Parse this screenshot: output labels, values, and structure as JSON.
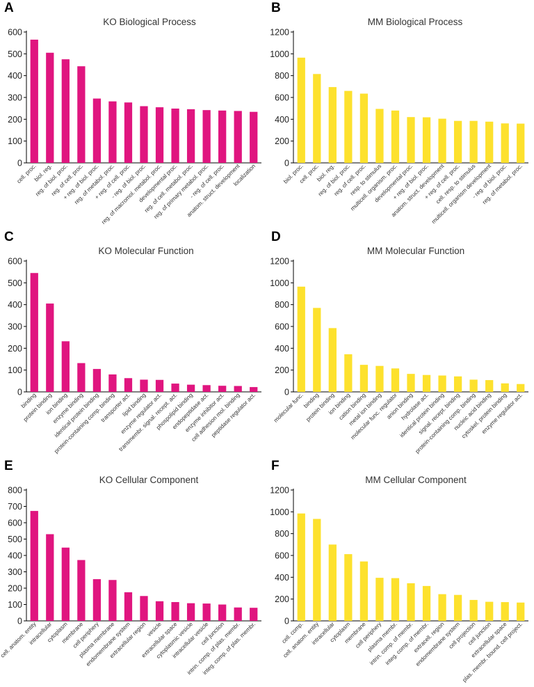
{
  "chart_data": [
    {
      "id": "A",
      "type": "bar",
      "title": "KO Biological Process",
      "color": "#e0157f",
      "ylim": [
        0,
        600
      ],
      "yticks": [
        0,
        100,
        200,
        300,
        400,
        500,
        600
      ],
      "categories": [
        "cell. proc.",
        "biol. reg.",
        "reg. of biol. proc.",
        "reg. of cell. proc.",
        "+ reg. of biol. proc.",
        "reg. of metabol. proc.",
        "+ reg. of cell. proc.",
        "- reg. of biol. proc.",
        "reg. of macromol. metabol. proc.",
        "developmental proc.",
        "reg. of cell. metabol. proc.",
        "reg. of primary metabol. proc.",
        "- reg. of cell. proc.",
        "anatom. struct. development",
        "localization"
      ],
      "values": [
        565,
        505,
        475,
        443,
        295,
        282,
        277,
        260,
        255,
        249,
        246,
        242,
        240,
        238,
        234
      ]
    },
    {
      "id": "B",
      "type": "bar",
      "title": "MM Biological Process",
      "color": "#fde12d",
      "ylim": [
        0,
        1200
      ],
      "yticks": [
        0,
        200,
        400,
        600,
        800,
        1000,
        1200
      ],
      "categories": [
        "biol. proc.",
        "cell. proc.",
        "biol. reg.",
        "reg. of biol. proc.",
        "reg. of cell. proc.",
        "resp. to stimulus",
        "multicell. organism. proc.",
        "developmental proc.",
        "+ reg. of biol. proc.",
        "anatom. struct. development",
        "+ reg. of cell. proc.",
        "cell. resp. to stimulus",
        "multicell. organism development",
        "- reg. of biol. proc.",
        "reg. of metabol. proc."
      ],
      "values": [
        965,
        815,
        695,
        660,
        635,
        495,
        480,
        420,
        418,
        405,
        385,
        385,
        378,
        362,
        360
      ]
    },
    {
      "id": "C",
      "type": "bar",
      "title": "KO Molecular Function",
      "color": "#e0157f",
      "ylim": [
        0,
        600
      ],
      "yticks": [
        0,
        100,
        200,
        300,
        400,
        500,
        600
      ],
      "categories": [
        "binding",
        "protein binding",
        "ion binding",
        "enzyme binding",
        "identical protein binding",
        "protein-containing comp. binding",
        "transporter act.",
        "lipid binding",
        "enzyme regulator act.",
        "transmembr. signal. recept. act.",
        "phospolipid binding",
        "endopeptidase act.",
        "enzyme inhibitor act.",
        "cell adhesion mol. binding",
        "peptidase regulator act."
      ],
      "values": [
        545,
        405,
        232,
        132,
        105,
        80,
        63,
        56,
        55,
        38,
        33,
        31,
        28,
        27,
        22
      ]
    },
    {
      "id": "D",
      "type": "bar",
      "title": "MM Molecular Function",
      "color": "#fde12d",
      "ylim": [
        0,
        1200
      ],
      "yticks": [
        0,
        200,
        400,
        600,
        800,
        1000,
        1200
      ],
      "categories": [
        "molecular func.",
        "binding",
        "protein binding",
        "ion binding",
        "cation binding",
        "metal ion binding",
        "molecular func. regulator",
        "anion binding",
        "hydrolase act.",
        "identical protein binding",
        "signal. recept. binding",
        "protein-containing comp. binding",
        "nucleic acid binding",
        "cytoskel. protein binding",
        "enzyme regulator act."
      ],
      "values": [
        965,
        770,
        585,
        345,
        248,
        238,
        215,
        165,
        155,
        150,
        142,
        112,
        108,
        78,
        72
      ]
    },
    {
      "id": "E",
      "type": "bar",
      "title": "KO Cellular Component",
      "color": "#e0157f",
      "ylim": [
        0,
        800
      ],
      "yticks": [
        0,
        100,
        200,
        300,
        400,
        500,
        600,
        700,
        800
      ],
      "categories": [
        "cell. anatom. entity",
        "intracellular",
        "cytoplasm",
        "membrane",
        "cell periphery",
        "plasma membrane",
        "endomembrane system",
        "extracellular region",
        "vesicle",
        "extracellular space",
        "cytoplasmic vesicle",
        "intracellular vesicle",
        "cell junction",
        "intrin. comp. of plas. membr.",
        "integ. comp. of plas. membr."
      ],
      "values": [
        672,
        530,
        448,
        372,
        255,
        250,
        175,
        152,
        120,
        115,
        108,
        106,
        100,
        82,
        80
      ]
    },
    {
      "id": "F",
      "type": "bar",
      "title": "MM Cellular Component",
      "color": "#fde12d",
      "ylim": [
        0,
        1200
      ],
      "yticks": [
        0,
        200,
        400,
        600,
        800,
        1000,
        1200
      ],
      "categories": [
        "cell. comp.",
        "cell. anatom. entity",
        "intracellular",
        "cytoplasm",
        "membrane",
        "cell periphery",
        "plasma membr.",
        "intrin. comp. of membr.",
        "integ. comp. of membr.",
        "extracell. region",
        "endomembrane system",
        "cell projection",
        "cell junction",
        "extracellular space",
        "plas. membr. bound. cell project."
      ],
      "values": [
        985,
        935,
        700,
        612,
        545,
        395,
        392,
        345,
        320,
        245,
        238,
        192,
        175,
        172,
        168
      ]
    }
  ]
}
